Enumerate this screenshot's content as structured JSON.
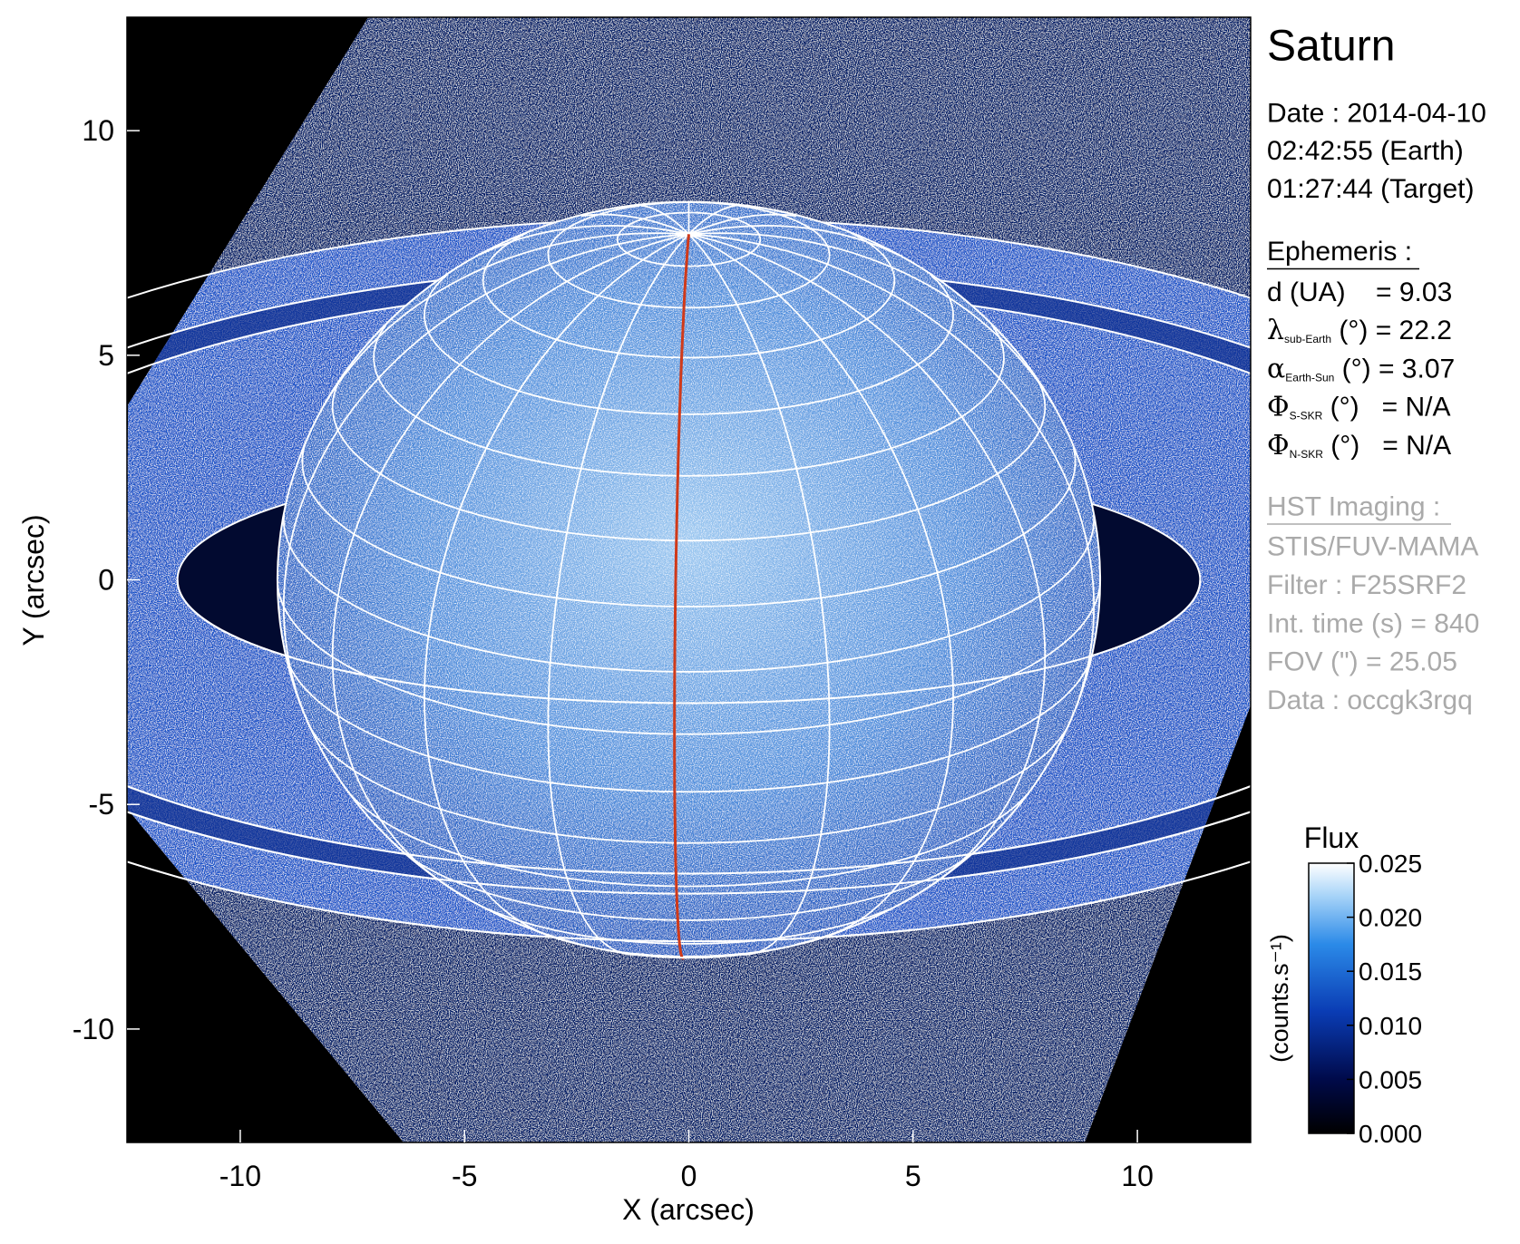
{
  "chart_data": {
    "type": "image",
    "xlabel": "X (arcsec)",
    "ylabel": "Y (arcsec)",
    "xlim": [
      -12.525,
      12.525
    ],
    "ylim": [
      -12.525,
      12.525
    ],
    "xticks": [
      -10,
      -5,
      0,
      5,
      10
    ],
    "yticks": [
      -10,
      -5,
      0,
      5,
      10
    ],
    "colorbar": {
      "title": "Flux",
      "label": "(counts.s⁻¹)",
      "lim": [
        0,
        0.025
      ],
      "ticks": [
        {
          "value": 0,
          "label": "0.000"
        },
        {
          "value": 0.005,
          "label": "0.005"
        },
        {
          "value": 0.01,
          "label": "0.010"
        },
        {
          "value": 0.015,
          "label": "0.015"
        },
        {
          "value": 0.02,
          "label": "0.020"
        },
        {
          "value": 0.025,
          "label": "0.025"
        }
      ]
    }
  },
  "info": {
    "title": "Saturn",
    "date": [
      "Date : 2014-04-10",
      "02:42:55 (Earth)",
      "01:27:44 (Target)"
    ],
    "ephemeris_heading": "Ephemeris :",
    "ephemeris": [
      {
        "text": "d (UA)    = 9.03"
      },
      {
        "symbol": "λ",
        "sub": "sub-Earth",
        "text": " (°) = 22.2"
      },
      {
        "symbol": "α",
        "sub": "Earth-Sun",
        "text": " (°) = 3.07"
      },
      {
        "symbol": "Φ",
        "sub": "S-SKR",
        "text": " (°)   = N/A"
      },
      {
        "symbol": "Φ",
        "sub": "N-SKR",
        "text": " (°)   = N/A"
      }
    ],
    "imaging_heading": "HST Imaging :",
    "imaging": [
      "STIS/FUV-MAMA",
      "Filter : F25SRF2",
      "Int. time (s) = 840",
      "FOV (\") = 25.05",
      "Data : occgk3rgq"
    ]
  }
}
